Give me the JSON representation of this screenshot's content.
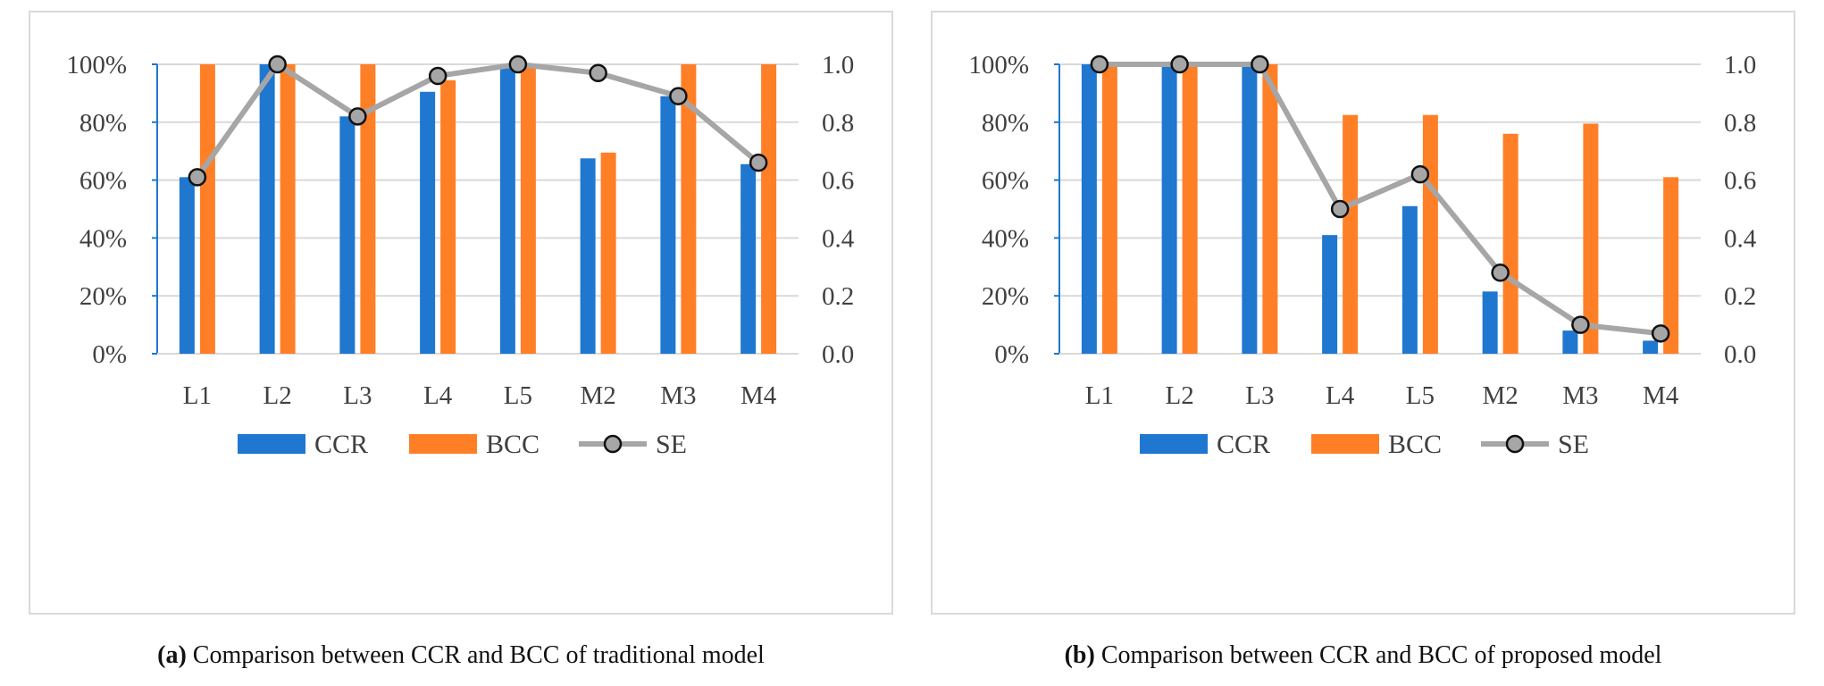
{
  "colors": {
    "ccr": "#1f77d0",
    "bcc": "#ff7f27",
    "se_line": "#a6a6a6",
    "se_marker": "#a6a6a6",
    "grid": "#d9d9d9"
  },
  "chart_data": [
    {
      "type": "bar",
      "panel_id": "a",
      "caption_label": "(a)",
      "caption_text": " Comparison between CCR and BCC of traditional model",
      "categories": [
        "L1",
        "L2",
        "L3",
        "L4",
        "L5",
        "M2",
        "M3",
        "M4"
      ],
      "series": [
        {
          "name": "CCR",
          "kind": "bar",
          "axis": "left",
          "values": [
            0.61,
            1.0,
            0.82,
            0.905,
            1.0,
            0.675,
            0.89,
            0.655
          ]
        },
        {
          "name": "BCC",
          "kind": "bar",
          "axis": "left",
          "values": [
            1.0,
            1.0,
            1.0,
            0.945,
            1.0,
            0.695,
            1.0,
            1.0
          ]
        },
        {
          "name": "SE",
          "kind": "line-marker",
          "axis": "right",
          "values": [
            0.61,
            1.0,
            0.82,
            0.96,
            1.0,
            0.97,
            0.89,
            0.66
          ]
        }
      ],
      "y_left": {
        "ticks": [
          "0%",
          "20%",
          "40%",
          "60%",
          "80%",
          "100%"
        ],
        "ylim": [
          0,
          1
        ]
      },
      "y_right": {
        "ticks": [
          "0.0",
          "0.2",
          "0.4",
          "0.6",
          "0.8",
          "1.0"
        ],
        "ylim": [
          0,
          1
        ]
      },
      "grid": true,
      "legend": "bottom"
    },
    {
      "type": "bar",
      "panel_id": "b",
      "caption_label": "(b)",
      "caption_text": " Comparison between CCR and BCC of proposed model",
      "categories": [
        "L1",
        "L2",
        "L3",
        "L4",
        "L5",
        "M2",
        "M3",
        "M4"
      ],
      "series": [
        {
          "name": "CCR",
          "kind": "bar",
          "axis": "left",
          "values": [
            1.0,
            1.0,
            1.0,
            0.41,
            0.51,
            0.215,
            0.08,
            0.045
          ]
        },
        {
          "name": "BCC",
          "kind": "bar",
          "axis": "left",
          "values": [
            1.0,
            1.0,
            1.0,
            0.825,
            0.825,
            0.76,
            0.795,
            0.61
          ]
        },
        {
          "name": "SE",
          "kind": "line-marker",
          "axis": "right",
          "values": [
            1.0,
            1.0,
            1.0,
            0.5,
            0.62,
            0.28,
            0.1,
            0.07
          ]
        }
      ],
      "y_left": {
        "ticks": [
          "0%",
          "20%",
          "40%",
          "60%",
          "80%",
          "100%"
        ],
        "ylim": [
          0,
          1
        ]
      },
      "y_right": {
        "ticks": [
          "0.0",
          "0.2",
          "0.4",
          "0.6",
          "0.8",
          "1.0"
        ],
        "ylim": [
          0,
          1
        ]
      },
      "grid": true,
      "legend": "bottom"
    }
  ]
}
